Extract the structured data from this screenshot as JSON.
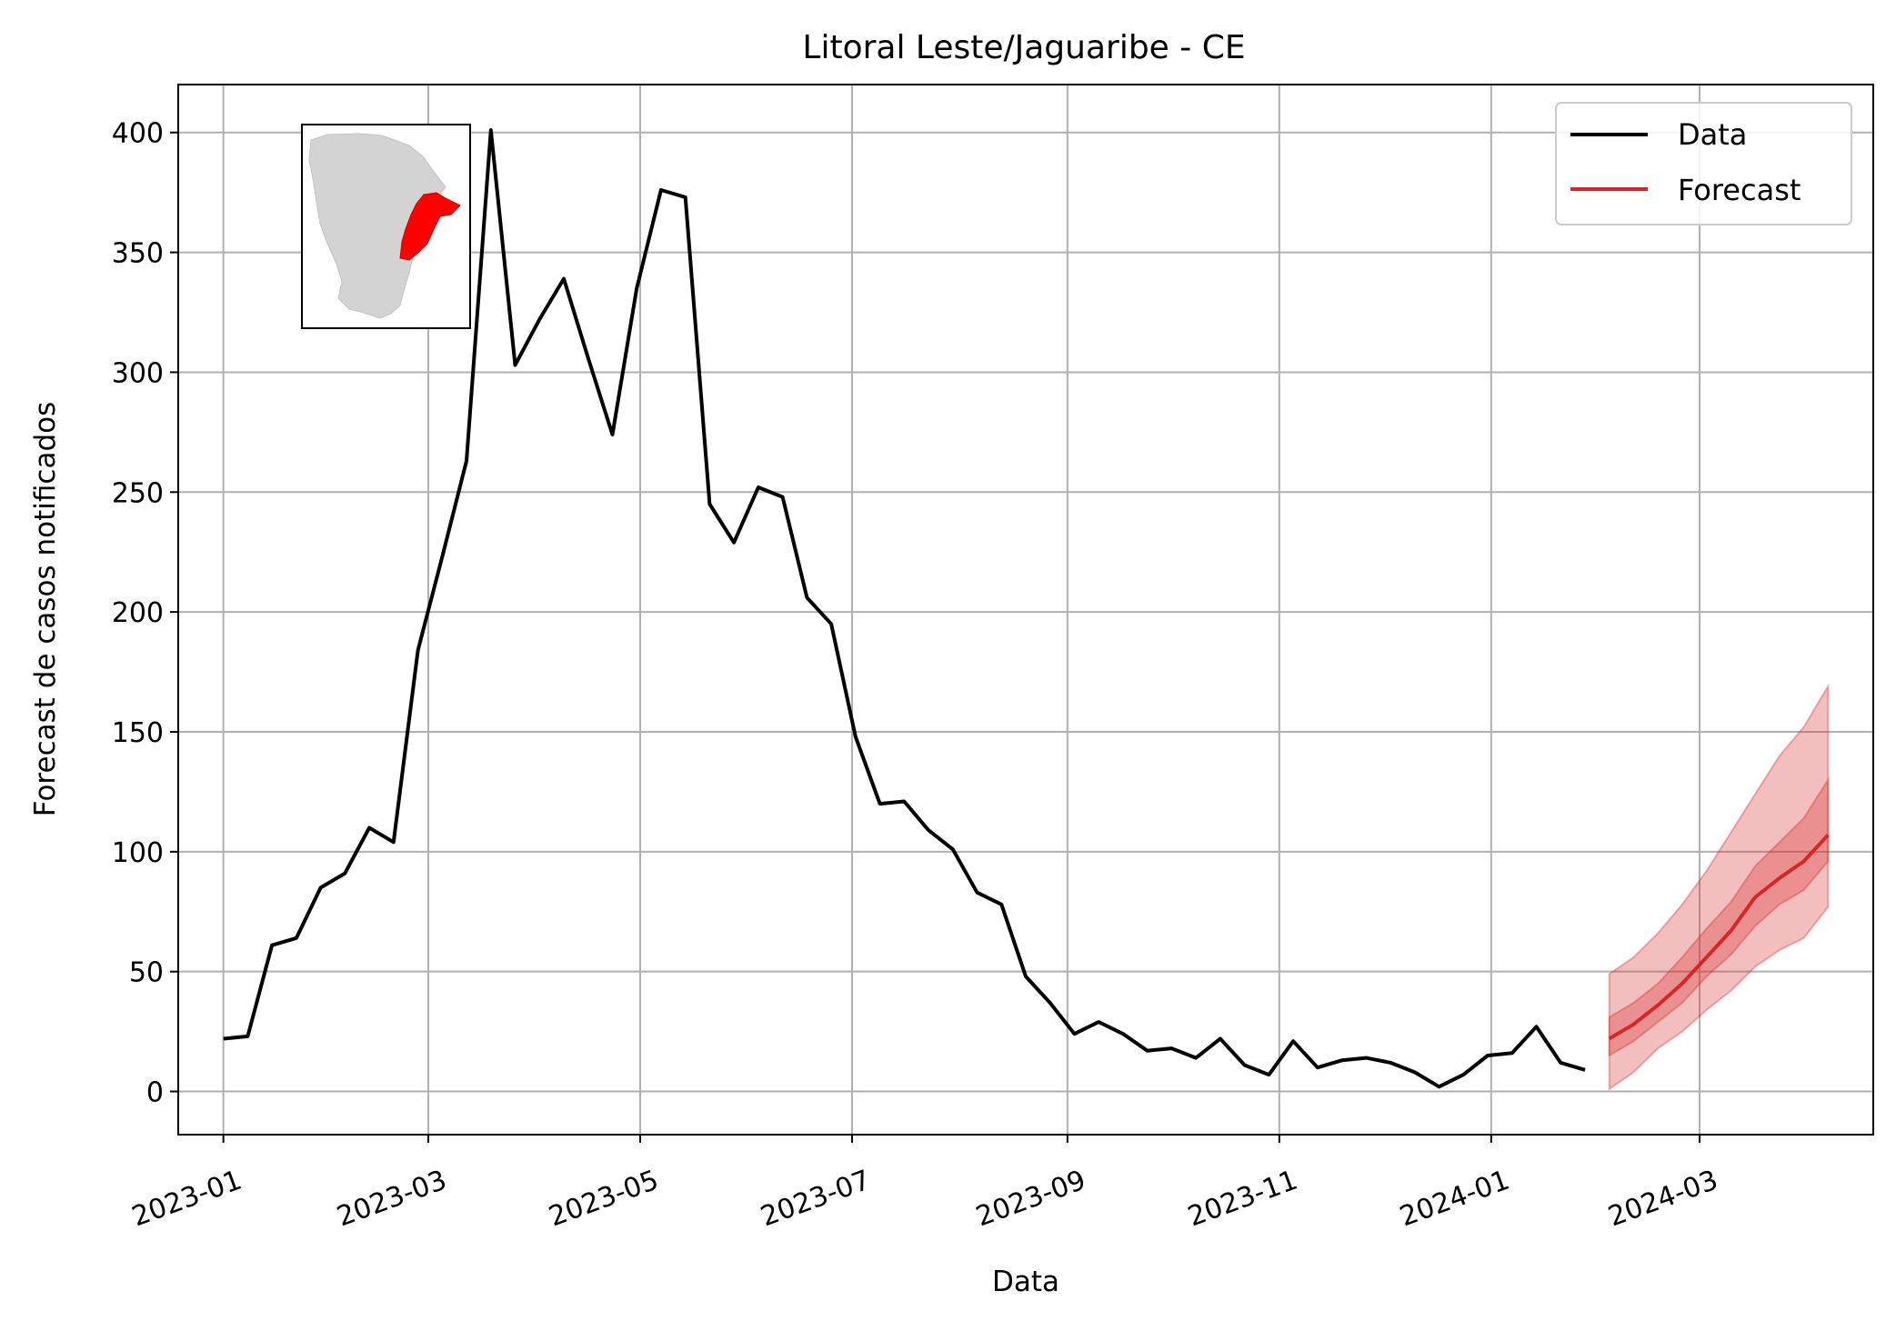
{
  "chart_data": {
    "type": "line",
    "title": "Litoral Leste/Jaguaribe - CE",
    "xlabel": "Data",
    "ylabel": "Forecast de casos notificados",
    "ylim": [
      -18,
      420
    ],
    "xlim": [
      "2022-12-19",
      "2024-04-20"
    ],
    "grid": true,
    "legend_position": "top-right",
    "x_ticks": [
      "2023-01",
      "2023-03",
      "2023-05",
      "2023-07",
      "2023-09",
      "2023-11",
      "2024-01",
      "2024-03"
    ],
    "y_ticks": [
      0,
      50,
      100,
      150,
      200,
      250,
      300,
      350,
      400
    ],
    "colors": {
      "data": "#000000",
      "forecast": "#d62728",
      "band_outer": "#d62728",
      "band_inner": "#d62728"
    },
    "series": [
      {
        "name": "Data",
        "color": "#000000",
        "x": [
          "2023-01-01",
          "2023-01-08",
          "2023-01-15",
          "2023-01-22",
          "2023-01-29",
          "2023-02-05",
          "2023-02-12",
          "2023-02-19",
          "2023-02-26",
          "2023-03-05",
          "2023-03-12",
          "2023-03-19",
          "2023-03-26",
          "2023-04-02",
          "2023-04-09",
          "2023-04-16",
          "2023-04-23",
          "2023-04-30",
          "2023-05-07",
          "2023-05-14",
          "2023-05-21",
          "2023-05-28",
          "2023-06-04",
          "2023-06-11",
          "2023-06-18",
          "2023-06-25",
          "2023-07-02",
          "2023-07-09",
          "2023-07-16",
          "2023-07-23",
          "2023-07-30",
          "2023-08-06",
          "2023-08-13",
          "2023-08-20",
          "2023-08-27",
          "2023-09-03",
          "2023-09-10",
          "2023-09-17",
          "2023-09-24",
          "2023-10-01",
          "2023-10-08",
          "2023-10-15",
          "2023-10-22",
          "2023-10-29",
          "2023-11-05",
          "2023-11-12",
          "2023-11-19",
          "2023-11-26",
          "2023-12-03",
          "2023-12-10",
          "2023-12-17",
          "2023-12-24",
          "2023-12-31",
          "2024-01-07",
          "2024-01-14",
          "2024-01-21",
          "2024-01-28"
        ],
        "values": [
          22,
          23,
          61,
          64,
          85,
          91,
          110,
          104,
          184,
          223,
          263,
          401,
          303,
          322,
          339,
          306,
          274,
          335,
          376,
          373,
          245,
          229,
          252,
          248,
          206,
          195,
          148,
          120,
          121,
          109,
          101,
          83,
          78,
          48,
          37,
          24,
          29,
          24,
          17,
          18,
          14,
          22,
          11,
          7,
          21,
          10,
          13,
          14,
          12,
          8,
          2,
          7,
          15,
          16,
          27,
          12,
          9
        ]
      },
      {
        "name": "Forecast",
        "color": "#d62728",
        "x": [
          "2024-02-04",
          "2024-02-11",
          "2024-02-18",
          "2024-02-25",
          "2024-03-03",
          "2024-03-10",
          "2024-03-17",
          "2024-03-24",
          "2024-03-31",
          "2024-04-07"
        ],
        "values": [
          22,
          28,
          36,
          45,
          56,
          67,
          81,
          89,
          96,
          107
        ],
        "band_90": {
          "lower": [
            1,
            8,
            18,
            25,
            34,
            42,
            52,
            59,
            64,
            77
          ],
          "upper": [
            49,
            56,
            66,
            78,
            92,
            108,
            124,
            140,
            152,
            169
          ]
        },
        "band_50": {
          "lower": [
            15,
            21,
            29,
            37,
            48,
            57,
            69,
            78,
            84,
            96
          ],
          "upper": [
            31,
            37,
            45,
            56,
            68,
            79,
            94,
            104,
            114,
            130
          ]
        }
      }
    ]
  },
  "inset_map": {
    "label": "Ceará state map with highlighted region",
    "base_color": "#d3d3d3",
    "highlight_color": "#ff0000"
  }
}
